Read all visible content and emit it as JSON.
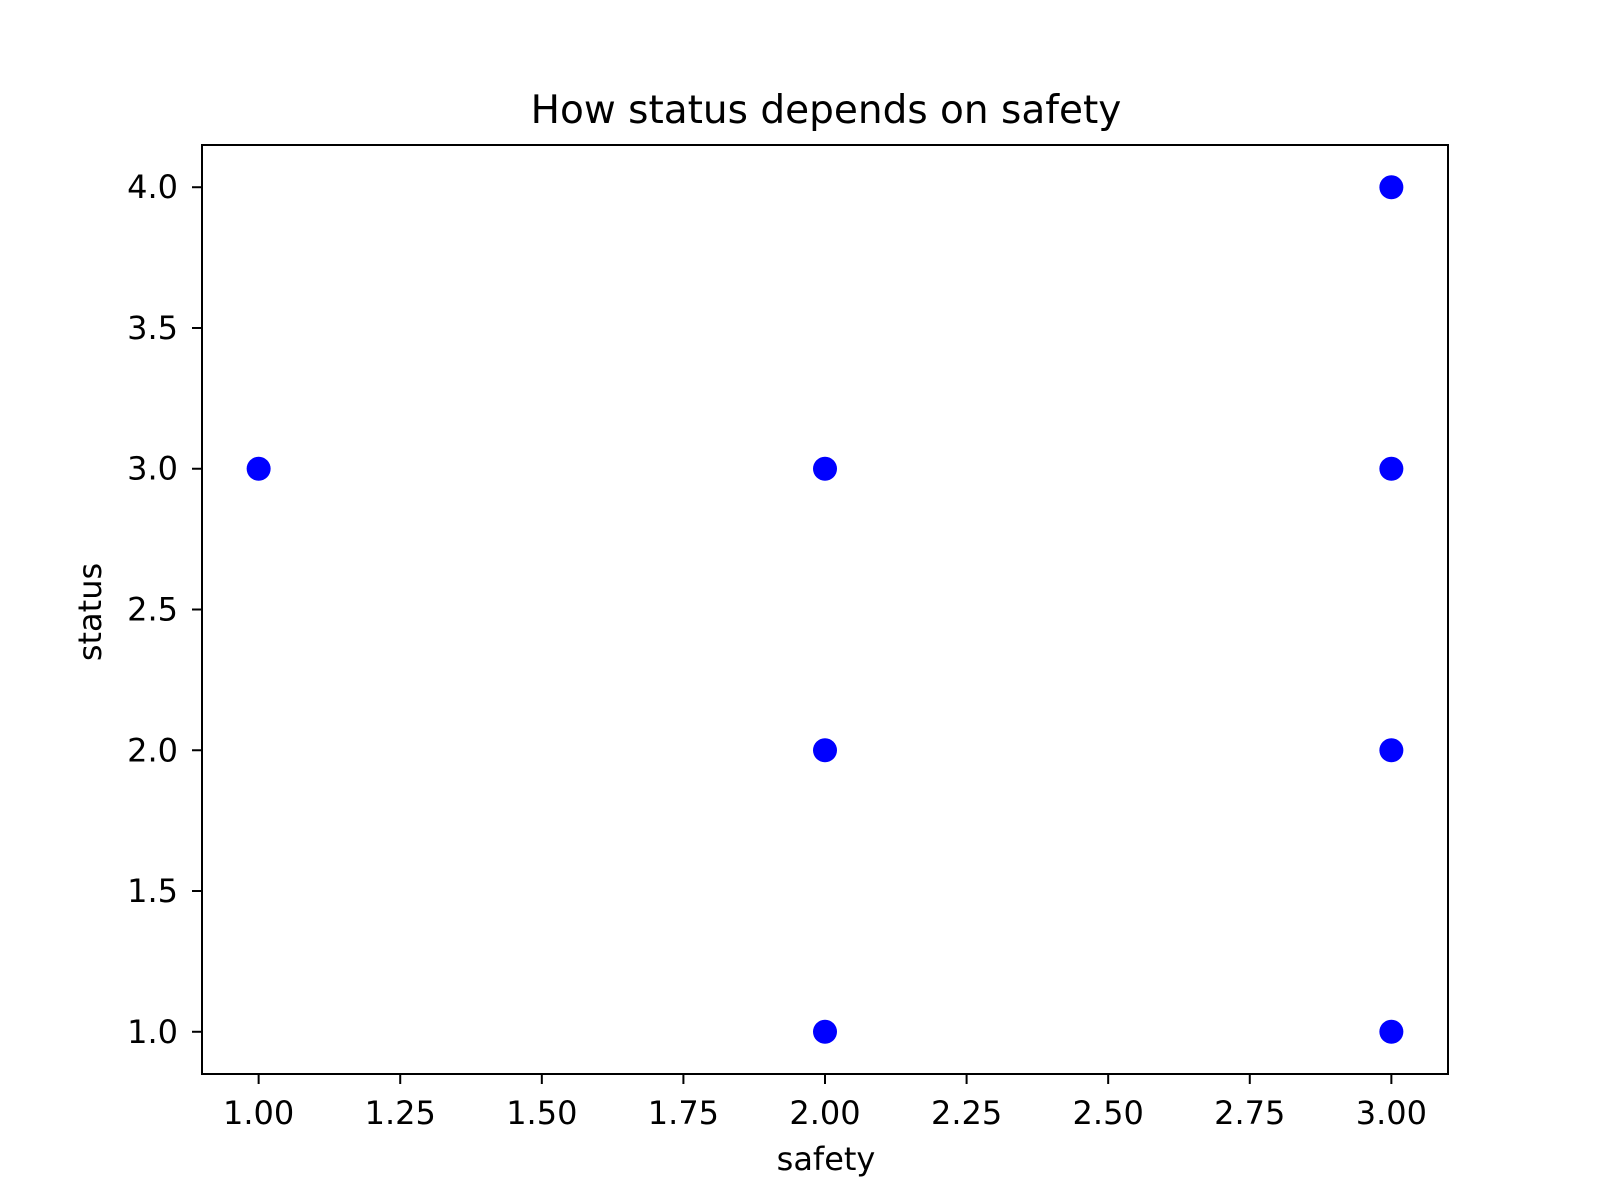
{
  "chart_data": {
    "type": "scatter",
    "title": "How status depends on safety",
    "xlabel": "safety",
    "ylabel": "status",
    "xlim": [
      0.9,
      3.1
    ],
    "ylim": [
      0.85,
      4.15
    ],
    "xticks": [
      1.0,
      1.25,
      1.5,
      1.75,
      2.0,
      2.25,
      2.5,
      2.75,
      3.0
    ],
    "xtick_labels": [
      "1.00",
      "1.25",
      "1.50",
      "1.75",
      "2.00",
      "2.25",
      "2.50",
      "2.75",
      "3.00"
    ],
    "yticks": [
      1.0,
      1.5,
      2.0,
      2.5,
      3.0,
      3.5,
      4.0
    ],
    "ytick_labels": [
      "1.0",
      "1.5",
      "2.0",
      "2.5",
      "3.0",
      "3.5",
      "4.0"
    ],
    "grid": false,
    "legend": "none",
    "marker_color": "#0000ff",
    "points": [
      {
        "x": 1.0,
        "y": 3.0
      },
      {
        "x": 2.0,
        "y": 3.0
      },
      {
        "x": 2.0,
        "y": 2.0
      },
      {
        "x": 2.0,
        "y": 1.0
      },
      {
        "x": 3.0,
        "y": 4.0
      },
      {
        "x": 3.0,
        "y": 3.0
      },
      {
        "x": 3.0,
        "y": 2.0
      },
      {
        "x": 3.0,
        "y": 1.0
      }
    ]
  }
}
